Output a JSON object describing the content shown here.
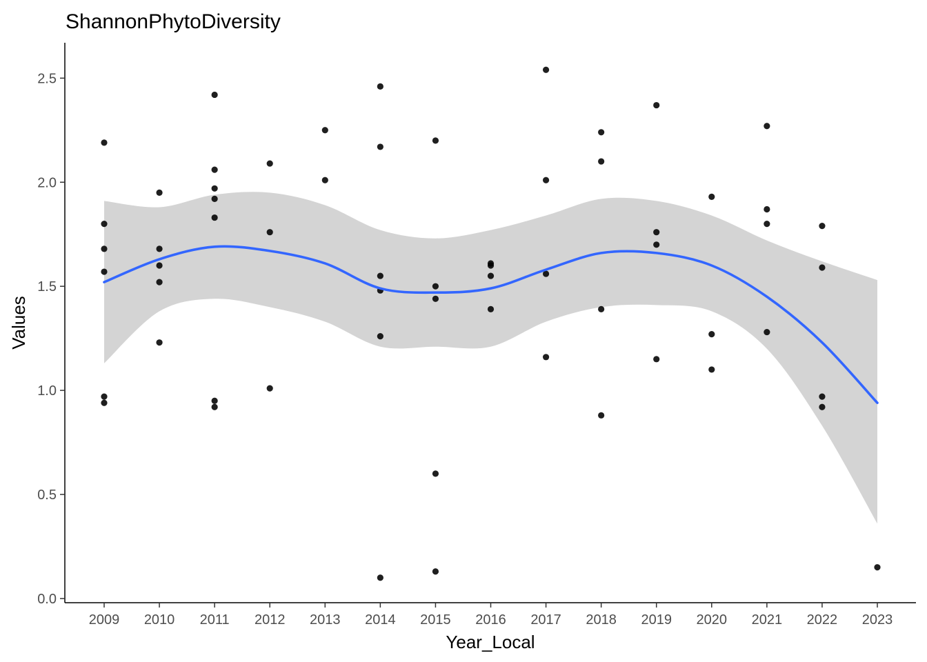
{
  "chart_data": {
    "type": "scatter",
    "title": "ShannonPhytoDiversity",
    "xlabel": "Year_Local",
    "ylabel": "Values",
    "categories": [
      "2009",
      "2010",
      "2011",
      "2012",
      "2013",
      "2014",
      "2015",
      "2016",
      "2017",
      "2018",
      "2019",
      "2020",
      "2021",
      "2022",
      "2023"
    ],
    "y_ticks": [
      "0.0",
      "0.5",
      "1.0",
      "1.5",
      "2.0",
      "2.5"
    ],
    "y_tick_values": [
      0.0,
      0.5,
      1.0,
      1.5,
      2.0,
      2.5
    ],
    "ylim": [
      -0.02,
      2.67
    ],
    "grid": false,
    "colors": {
      "points": "#000000",
      "smooth_line": "#3366ff",
      "confidence_band": "#d4d4d4"
    },
    "points": [
      {
        "x": "2009",
        "y": 2.19
      },
      {
        "x": "2009",
        "y": 1.8
      },
      {
        "x": "2009",
        "y": 1.68
      },
      {
        "x": "2009",
        "y": 1.57
      },
      {
        "x": "2009",
        "y": 0.97
      },
      {
        "x": "2009",
        "y": 0.94
      },
      {
        "x": "2010",
        "y": 1.95
      },
      {
        "x": "2010",
        "y": 1.68
      },
      {
        "x": "2010",
        "y": 1.6
      },
      {
        "x": "2010",
        "y": 1.52
      },
      {
        "x": "2010",
        "y": 1.23
      },
      {
        "x": "2011",
        "y": 2.42
      },
      {
        "x": "2011",
        "y": 2.06
      },
      {
        "x": "2011",
        "y": 1.97
      },
      {
        "x": "2011",
        "y": 1.92
      },
      {
        "x": "2011",
        "y": 1.83
      },
      {
        "x": "2011",
        "y": 0.95
      },
      {
        "x": "2011",
        "y": 0.92
      },
      {
        "x": "2012",
        "y": 2.09
      },
      {
        "x": "2012",
        "y": 1.76
      },
      {
        "x": "2012",
        "y": 1.01
      },
      {
        "x": "2013",
        "y": 2.25
      },
      {
        "x": "2013",
        "y": 2.01
      },
      {
        "x": "2014",
        "y": 2.46
      },
      {
        "x": "2014",
        "y": 2.17
      },
      {
        "x": "2014",
        "y": 1.55
      },
      {
        "x": "2014",
        "y": 1.48
      },
      {
        "x": "2014",
        "y": 1.26
      },
      {
        "x": "2014",
        "y": 0.1
      },
      {
        "x": "2015",
        "y": 2.2
      },
      {
        "x": "2015",
        "y": 1.5
      },
      {
        "x": "2015",
        "y": 1.44
      },
      {
        "x": "2015",
        "y": 0.6
      },
      {
        "x": "2015",
        "y": 0.13
      },
      {
        "x": "2016",
        "y": 1.61
      },
      {
        "x": "2016",
        "y": 1.6
      },
      {
        "x": "2016",
        "y": 1.55
      },
      {
        "x": "2016",
        "y": 1.39
      },
      {
        "x": "2017",
        "y": 2.54
      },
      {
        "x": "2017",
        "y": 2.01
      },
      {
        "x": "2017",
        "y": 1.56
      },
      {
        "x": "2017",
        "y": 1.16
      },
      {
        "x": "2018",
        "y": 2.24
      },
      {
        "x": "2018",
        "y": 2.1
      },
      {
        "x": "2018",
        "y": 1.39
      },
      {
        "x": "2018",
        "y": 0.88
      },
      {
        "x": "2019",
        "y": 2.37
      },
      {
        "x": "2019",
        "y": 1.76
      },
      {
        "x": "2019",
        "y": 1.7
      },
      {
        "x": "2019",
        "y": 1.15
      },
      {
        "x": "2020",
        "y": 1.93
      },
      {
        "x": "2020",
        "y": 1.27
      },
      {
        "x": "2020",
        "y": 1.1
      },
      {
        "x": "2021",
        "y": 2.27
      },
      {
        "x": "2021",
        "y": 1.87
      },
      {
        "x": "2021",
        "y": 1.8
      },
      {
        "x": "2021",
        "y": 1.28
      },
      {
        "x": "2022",
        "y": 1.79
      },
      {
        "x": "2022",
        "y": 1.59
      },
      {
        "x": "2022",
        "y": 0.97
      },
      {
        "x": "2022",
        "y": 0.92
      },
      {
        "x": "2023",
        "y": 0.15
      }
    ],
    "smooth": {
      "x": [
        2009,
        2010,
        2011,
        2012,
        2013,
        2014,
        2015,
        2016,
        2017,
        2018,
        2019,
        2020,
        2021,
        2022,
        2023
      ],
      "y": [
        1.52,
        1.63,
        1.69,
        1.67,
        1.61,
        1.49,
        1.47,
        1.49,
        1.58,
        1.66,
        1.66,
        1.6,
        1.45,
        1.23,
        0.94
      ],
      "lower": [
        1.13,
        1.38,
        1.44,
        1.4,
        1.33,
        1.21,
        1.21,
        1.21,
        1.33,
        1.4,
        1.41,
        1.38,
        1.2,
        0.83,
        0.36
      ],
      "upper": [
        1.91,
        1.88,
        1.94,
        1.95,
        1.89,
        1.77,
        1.73,
        1.77,
        1.84,
        1.92,
        1.91,
        1.84,
        1.72,
        1.62,
        1.53
      ]
    }
  }
}
